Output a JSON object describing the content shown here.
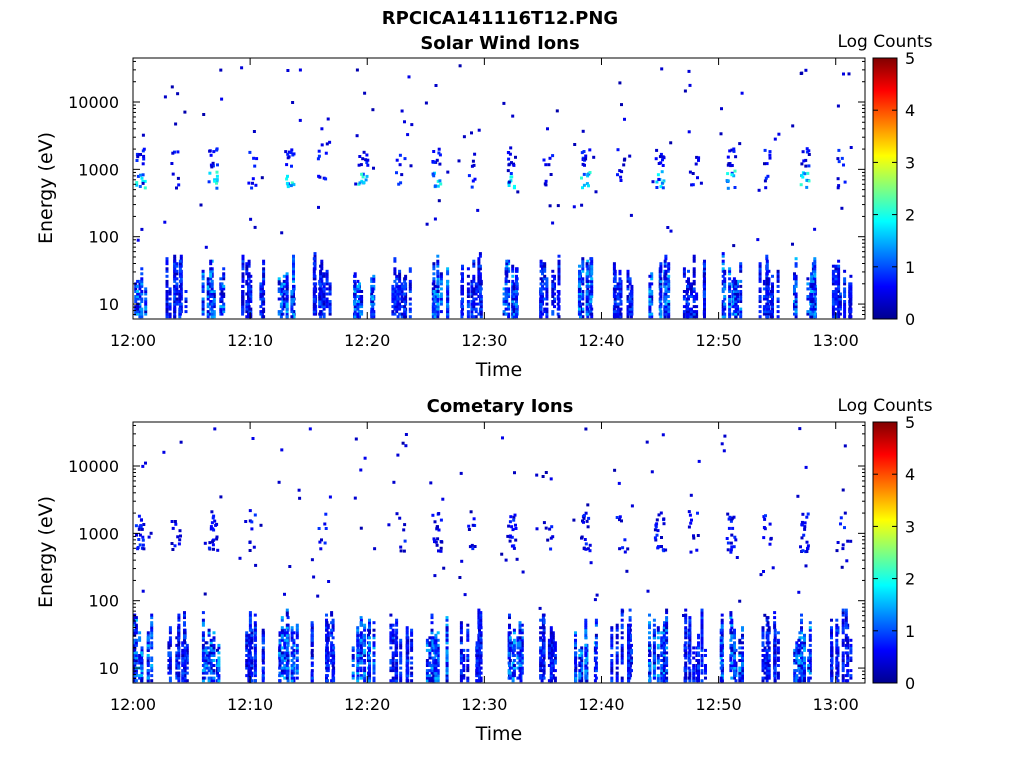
{
  "figure_title": "RPCICA141116T12.PNG",
  "chart_data": [
    {
      "type": "heatmap",
      "title": "Solar Wind Ions",
      "xlabel": "Time",
      "ylabel": "Energy (eV)",
      "x_ticks": [
        "12:00",
        "12:10",
        "12:20",
        "12:30",
        "12:40",
        "12:50",
        "13:00"
      ],
      "y_ticks": [
        "10",
        "100",
        "1000",
        "10000"
      ],
      "y_scale": "log",
      "ylim_ev": [
        6,
        45000
      ],
      "xlim_min": [
        0,
        62.5
      ],
      "colorbar": {
        "label": "Log Counts",
        "ticks": [
          "0",
          "1",
          "2",
          "3",
          "4",
          "5"
        ],
        "range": [
          0,
          5
        ]
      },
      "bursts_min": [
        0.5,
        3.5,
        6.7,
        10.0,
        13.2,
        16.0,
        19.5,
        22.7,
        25.8,
        28.7,
        32.2,
        35.3,
        38.5,
        41.5,
        44.8,
        47.8,
        50.9,
        54.0,
        57.2,
        60.3
      ],
      "high_energy_bands_ev": [
        700,
        1500
      ],
      "low_energy_range_ev": [
        7,
        60
      ]
    },
    {
      "type": "heatmap",
      "title": "Cometary Ions",
      "xlabel": "Time",
      "ylabel": "Energy (eV)",
      "x_ticks": [
        "12:00",
        "12:10",
        "12:20",
        "12:30",
        "12:40",
        "12:50",
        "13:00"
      ],
      "y_ticks": [
        "10",
        "100",
        "1000",
        "10000"
      ],
      "y_scale": "log",
      "ylim_ev": [
        6,
        45000
      ],
      "xlim_min": [
        0,
        62.5
      ],
      "colorbar": {
        "label": "Log Counts",
        "ticks": [
          "0",
          "1",
          "2",
          "3",
          "4",
          "5"
        ],
        "range": [
          0,
          5
        ]
      },
      "bursts_min": [
        0.5,
        3.5,
        6.7,
        10.0,
        13.2,
        16.0,
        19.5,
        22.7,
        25.8,
        28.7,
        32.2,
        35.3,
        38.5,
        41.5,
        44.8,
        47.8,
        50.9,
        54.0,
        57.2,
        60.3
      ],
      "high_energy_bands_ev": [
        700,
        1500
      ],
      "low_energy_range_ev": [
        7,
        80
      ]
    }
  ]
}
